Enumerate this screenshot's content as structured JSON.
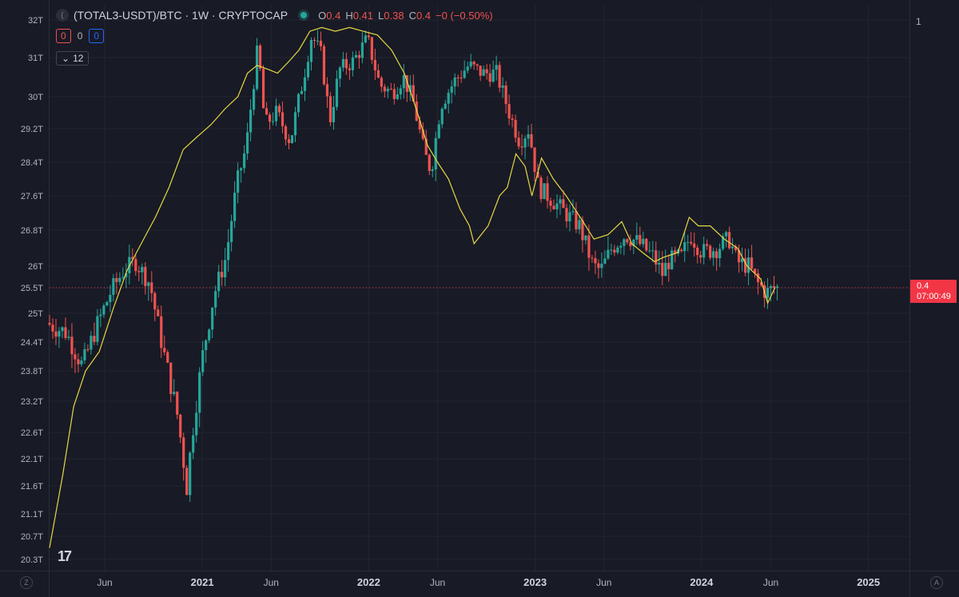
{
  "header": {
    "symbol": "(TOTAL3-USDT)/BTC · 1W · CRYPTOCAP",
    "open_label": "O",
    "open": "0.4",
    "high_label": "H",
    "high": "0.41",
    "low_label": "L",
    "low": "0.38",
    "close_label": "C",
    "close": "0.4",
    "change": "−0 (−0.50%)"
  },
  "indicator_row": {
    "red_value": "0",
    "mid_value": "0",
    "blue_value": "0"
  },
  "collapse_row": {
    "count": "12"
  },
  "right_scale_label": "1",
  "price_tag": {
    "value": "0.4",
    "countdown": "07:00:49"
  },
  "buttons": {
    "z_label": "Z",
    "a_label": "A"
  },
  "logo_text": "17",
  "colors": {
    "up": "#26a69a",
    "down": "#ef5350",
    "overlay": "#e6d844",
    "background": "#181a25",
    "grid": "#22252f"
  },
  "chart_data": {
    "type": "candlestick",
    "timeframe": "1W",
    "y_ticks": [
      "32T",
      "31T",
      "30T",
      "29.2T",
      "28.4T",
      "27.6T",
      "26.8T",
      "26T",
      "25.5T",
      "25T",
      "24.4T",
      "23.8T",
      "23.2T",
      "22.6T",
      "22.1T",
      "21.6T",
      "21.1T",
      "20.7T",
      "20.3T"
    ],
    "x_ticks": [
      "Jun",
      "2021",
      "Jun",
      "2022",
      "Jun",
      "2023",
      "Jun",
      "2024",
      "Jun",
      "2025"
    ],
    "x_tick_dates": [
      "2020-06-01",
      "2021-01-01",
      "2021-06-01",
      "2022-01-01",
      "2022-06-01",
      "2023-01-01",
      "2023-06-01",
      "2024-01-01",
      "2024-06-01",
      "2025-01-01"
    ],
    "x_range": [
      "2020-02-01",
      "2025-04-01"
    ],
    "current_price_level": "25.5T",
    "price_series": [
      {
        "date": "2020-02-01",
        "v": 24.8
      },
      {
        "date": "2020-03-15",
        "v": 24.6
      },
      {
        "date": "2020-04-20",
        "v": 23.9
      },
      {
        "date": "2020-05-20",
        "v": 24.7
      },
      {
        "date": "2020-06-20",
        "v": 25.4
      },
      {
        "date": "2020-07-20",
        "v": 25.9
      },
      {
        "date": "2020-08-15",
        "v": 26.1
      },
      {
        "date": "2020-09-15",
        "v": 25.6
      },
      {
        "date": "2020-10-15",
        "v": 24.2
      },
      {
        "date": "2020-11-15",
        "v": 22.9
      },
      {
        "date": "2020-12-05",
        "v": 21.6
      },
      {
        "date": "2020-12-20",
        "v": 22.8
      },
      {
        "date": "2021-01-10",
        "v": 24.2
      },
      {
        "date": "2021-02-01",
        "v": 25.3
      },
      {
        "date": "2021-03-01",
        "v": 26.2
      },
      {
        "date": "2021-03-25",
        "v": 27.9
      },
      {
        "date": "2021-04-15",
        "v": 28.8
      },
      {
        "date": "2021-05-10",
        "v": 31.3
      },
      {
        "date": "2021-05-25",
        "v": 29.3
      },
      {
        "date": "2021-06-20",
        "v": 29.6
      },
      {
        "date": "2021-07-20",
        "v": 28.9
      },
      {
        "date": "2021-08-20",
        "v": 30.6
      },
      {
        "date": "2021-09-05",
        "v": 31.6
      },
      {
        "date": "2021-09-25",
        "v": 31.1
      },
      {
        "date": "2021-10-15",
        "v": 29.4
      },
      {
        "date": "2021-11-05",
        "v": 30.7
      },
      {
        "date": "2021-12-05",
        "v": 30.9
      },
      {
        "date": "2022-01-05",
        "v": 31.5
      },
      {
        "date": "2022-02-01",
        "v": 30.3
      },
      {
        "date": "2022-03-01",
        "v": 30.1
      },
      {
        "date": "2022-03-25",
        "v": 30.5
      },
      {
        "date": "2022-04-15",
        "v": 29.9
      },
      {
        "date": "2022-05-10",
        "v": 28.6
      },
      {
        "date": "2022-05-25",
        "v": 28.2
      },
      {
        "date": "2022-06-15",
        "v": 29.8
      },
      {
        "date": "2022-07-15",
        "v": 30.4
      },
      {
        "date": "2022-08-15",
        "v": 30.8
      },
      {
        "date": "2022-09-15",
        "v": 30.6
      },
      {
        "date": "2022-10-15",
        "v": 30.6
      },
      {
        "date": "2022-11-15",
        "v": 29.5
      },
      {
        "date": "2022-12-05",
        "v": 28.9
      },
      {
        "date": "2022-12-25",
        "v": 29.2
      },
      {
        "date": "2023-01-15",
        "v": 27.8
      },
      {
        "date": "2023-02-15",
        "v": 27.5
      },
      {
        "date": "2023-03-15",
        "v": 27.2
      },
      {
        "date": "2023-04-15",
        "v": 26.9
      },
      {
        "date": "2023-05-15",
        "v": 26.0
      },
      {
        "date": "2023-06-01",
        "v": 25.9
      },
      {
        "date": "2023-06-25",
        "v": 26.4
      },
      {
        "date": "2023-07-25",
        "v": 26.7
      },
      {
        "date": "2023-08-25",
        "v": 26.5
      },
      {
        "date": "2023-09-25",
        "v": 26.2
      },
      {
        "date": "2023-10-15",
        "v": 25.8
      },
      {
        "date": "2023-10-25",
        "v": 26.1
      },
      {
        "date": "2023-11-25",
        "v": 26.2
      },
      {
        "date": "2023-12-15",
        "v": 26.7
      },
      {
        "date": "2024-01-10",
        "v": 26.3
      },
      {
        "date": "2024-02-10",
        "v": 26.4
      },
      {
        "date": "2024-03-10",
        "v": 26.6
      },
      {
        "date": "2024-03-25",
        "v": 26.1
      },
      {
        "date": "2024-04-20",
        "v": 26.0
      },
      {
        "date": "2024-05-10",
        "v": 25.6
      },
      {
        "date": "2024-06-01",
        "v": 25.4
      },
      {
        "date": "2024-06-15",
        "v": 25.5
      }
    ],
    "overlay_series": [
      {
        "date": "2020-02-01",
        "v": 20.5
      },
      {
        "date": "2020-03-01",
        "v": 21.8
      },
      {
        "date": "2020-03-25",
        "v": 23.1
      },
      {
        "date": "2020-04-20",
        "v": 23.8
      },
      {
        "date": "2020-05-20",
        "v": 24.2
      },
      {
        "date": "2020-06-20",
        "v": 25.1
      },
      {
        "date": "2020-07-20",
        "v": 25.9
      },
      {
        "date": "2020-08-20",
        "v": 26.5
      },
      {
        "date": "2020-09-20",
        "v": 27.1
      },
      {
        "date": "2020-10-20",
        "v": 27.8
      },
      {
        "date": "2020-11-20",
        "v": 28.7
      },
      {
        "date": "2020-12-20",
        "v": 29.0
      },
      {
        "date": "2021-01-20",
        "v": 29.3
      },
      {
        "date": "2021-02-20",
        "v": 29.7
      },
      {
        "date": "2021-03-20",
        "v": 30.0
      },
      {
        "date": "2021-04-10",
        "v": 30.6
      },
      {
        "date": "2021-05-01",
        "v": 30.8
      },
      {
        "date": "2021-05-25",
        "v": 30.7
      },
      {
        "date": "2021-06-15",
        "v": 30.6
      },
      {
        "date": "2021-07-10",
        "v": 30.9
      },
      {
        "date": "2021-08-01",
        "v": 31.2
      },
      {
        "date": "2021-08-25",
        "v": 31.7
      },
      {
        "date": "2021-09-20",
        "v": 31.8
      },
      {
        "date": "2021-10-20",
        "v": 31.7
      },
      {
        "date": "2021-11-20",
        "v": 31.8
      },
      {
        "date": "2021-12-20",
        "v": 31.7
      },
      {
        "date": "2022-01-20",
        "v": 31.6
      },
      {
        "date": "2022-02-20",
        "v": 31.2
      },
      {
        "date": "2022-03-20",
        "v": 30.6
      },
      {
        "date": "2022-04-15",
        "v": 29.7
      },
      {
        "date": "2022-05-10",
        "v": 28.8
      },
      {
        "date": "2022-06-01",
        "v": 28.4
      },
      {
        "date": "2022-06-25",
        "v": 28.0
      },
      {
        "date": "2022-07-20",
        "v": 27.3
      },
      {
        "date": "2022-08-10",
        "v": 26.9
      },
      {
        "date": "2022-08-20",
        "v": 26.5
      },
      {
        "date": "2022-09-20",
        "v": 26.9
      },
      {
        "date": "2022-10-15",
        "v": 27.6
      },
      {
        "date": "2022-11-01",
        "v": 27.8
      },
      {
        "date": "2022-11-20",
        "v": 28.6
      },
      {
        "date": "2022-12-10",
        "v": 28.3
      },
      {
        "date": "2022-12-25",
        "v": 27.6
      },
      {
        "date": "2023-01-15",
        "v": 28.5
      },
      {
        "date": "2023-02-10",
        "v": 28.0
      },
      {
        "date": "2023-03-10",
        "v": 27.6
      },
      {
        "date": "2023-04-10",
        "v": 27.1
      },
      {
        "date": "2023-05-10",
        "v": 26.6
      },
      {
        "date": "2023-06-10",
        "v": 26.7
      },
      {
        "date": "2023-07-10",
        "v": 27.0
      },
      {
        "date": "2023-08-01",
        "v": 26.5
      },
      {
        "date": "2023-08-25",
        "v": 26.3
      },
      {
        "date": "2023-09-20",
        "v": 26.1
      },
      {
        "date": "2023-10-10",
        "v": 26.2
      },
      {
        "date": "2023-11-10",
        "v": 26.3
      },
      {
        "date": "2023-12-05",
        "v": 27.1
      },
      {
        "date": "2023-12-25",
        "v": 26.9
      },
      {
        "date": "2024-01-20",
        "v": 26.9
      },
      {
        "date": "2024-02-20",
        "v": 26.6
      },
      {
        "date": "2024-03-20",
        "v": 26.4
      },
      {
        "date": "2024-04-10",
        "v": 26.0
      },
      {
        "date": "2024-05-10",
        "v": 25.7
      },
      {
        "date": "2024-05-25",
        "v": 25.2
      },
      {
        "date": "2024-06-10",
        "v": 25.5
      }
    ]
  }
}
